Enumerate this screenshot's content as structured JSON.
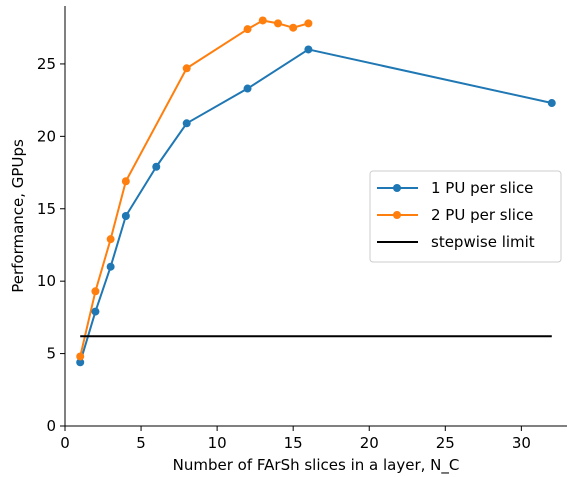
{
  "chart_data": {
    "type": "line",
    "xlabel": "Number of FArSh slices in a layer, N_C",
    "ylabel": "Performance, GPUps",
    "xlim": [
      0,
      33
    ],
    "ylim": [
      0,
      29
    ],
    "x_ticks": [
      0,
      5,
      10,
      15,
      20,
      25,
      30
    ],
    "y_ticks": [
      0,
      5,
      10,
      15,
      20,
      25
    ],
    "legend_position": "center-right",
    "series": [
      {
        "name": "1 PU per slice",
        "color": "#1f77b4",
        "marker": "circle",
        "x": [
          1,
          2,
          3,
          4,
          6,
          8,
          12,
          16,
          32
        ],
        "y": [
          4.4,
          7.9,
          11.0,
          14.5,
          17.9,
          20.9,
          23.3,
          26.0,
          22.3
        ]
      },
      {
        "name": "2 PU per slice",
        "color": "#ff7f0e",
        "marker": "circle",
        "x": [
          1,
          2,
          3,
          4,
          8,
          12,
          13,
          14,
          15,
          16
        ],
        "y": [
          4.8,
          9.3,
          12.9,
          16.9,
          24.7,
          27.4,
          28.0,
          27.8,
          27.5,
          27.8
        ]
      },
      {
        "name": "stepwise limit",
        "color": "#000000",
        "marker": "none",
        "x": [
          1,
          32
        ],
        "y": [
          6.2,
          6.2
        ]
      }
    ]
  }
}
